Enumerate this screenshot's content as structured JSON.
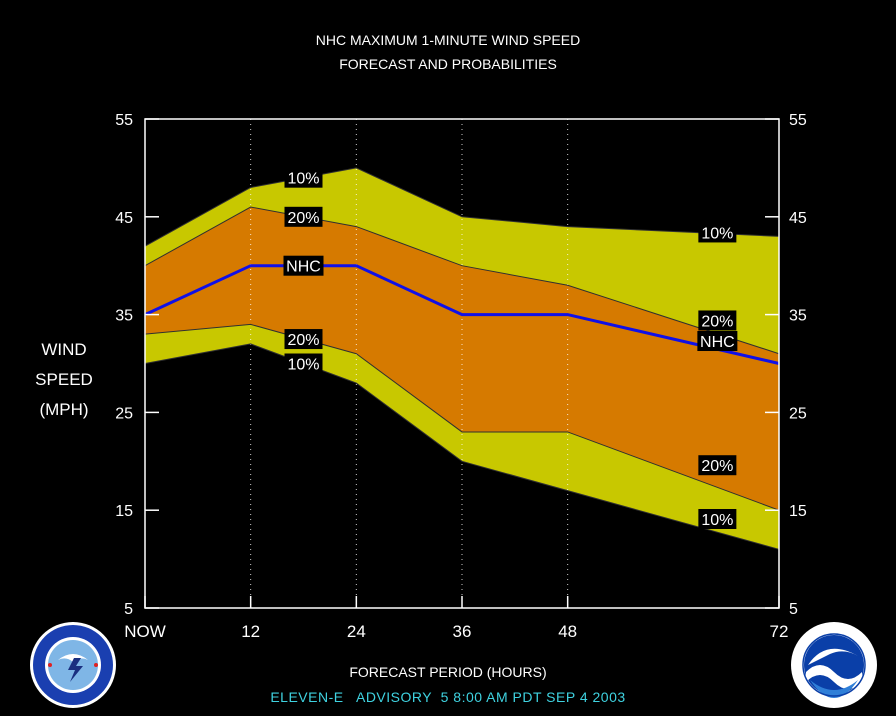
{
  "title_line1": "NHC MAXIMUM 1-MINUTE WIND SPEED",
  "title_line2": "FORECAST AND PROBABILITIES",
  "ylabel_lines": [
    "WIND",
    "SPEED",
    "(MPH)"
  ],
  "xlabel": "FORECAST PERIOD (HOURS)",
  "advisory": "ELEVEN-E   ADVISORY  5 8:00 AM PDT SEP 4 2003",
  "colors": {
    "background": "#000000",
    "band_10": "#c8c800",
    "band_20": "#d67a00",
    "nhc_line": "#1010e8",
    "frame": "#ffffff",
    "advisory_text": "#3fd2e0"
  },
  "logos": {
    "left": "nws-logo",
    "right": "noaa-logo"
  },
  "chart_data": {
    "type": "area",
    "x": [
      0,
      12,
      24,
      36,
      48,
      72
    ],
    "x_tick_labels": [
      "NOW",
      "12",
      "24",
      "36",
      "48",
      "72"
    ],
    "xlim": [
      0,
      72
    ],
    "ylim": [
      5,
      55
    ],
    "y_ticks": [
      5,
      15,
      25,
      35,
      45,
      55
    ],
    "grid": "vertical dotted",
    "series": [
      {
        "name": "10%",
        "values": [
          42,
          48,
          50,
          45,
          44,
          43
        ]
      },
      {
        "name": "20%",
        "values": [
          40,
          46,
          44,
          40,
          38,
          31
        ]
      },
      {
        "name": "NHC",
        "values": [
          35,
          40,
          40,
          35,
          35,
          30
        ]
      },
      {
        "name": "20%",
        "values": [
          33,
          34,
          31,
          23,
          23,
          15
        ]
      },
      {
        "name": "10%",
        "values": [
          30,
          32,
          28,
          20,
          17,
          11
        ]
      }
    ],
    "labels": [
      {
        "text": "10%",
        "x": 18,
        "y": 49
      },
      {
        "text": "20%",
        "x": 18,
        "y": 45
      },
      {
        "text": "NHC",
        "x": 18,
        "y": 40
      },
      {
        "text": "20%",
        "x": 18,
        "y": 32.5
      },
      {
        "text": "10%",
        "x": 18,
        "y": 30
      },
      {
        "text": "10%",
        "x": 65,
        "y": 43.4
      },
      {
        "text": "20%",
        "x": 65,
        "y": 34.4
      },
      {
        "text": "NHC",
        "x": 65,
        "y": 32.3
      },
      {
        "text": "20%",
        "x": 65,
        "y": 19.6
      },
      {
        "text": "10%",
        "x": 65,
        "y": 14.1
      }
    ]
  }
}
